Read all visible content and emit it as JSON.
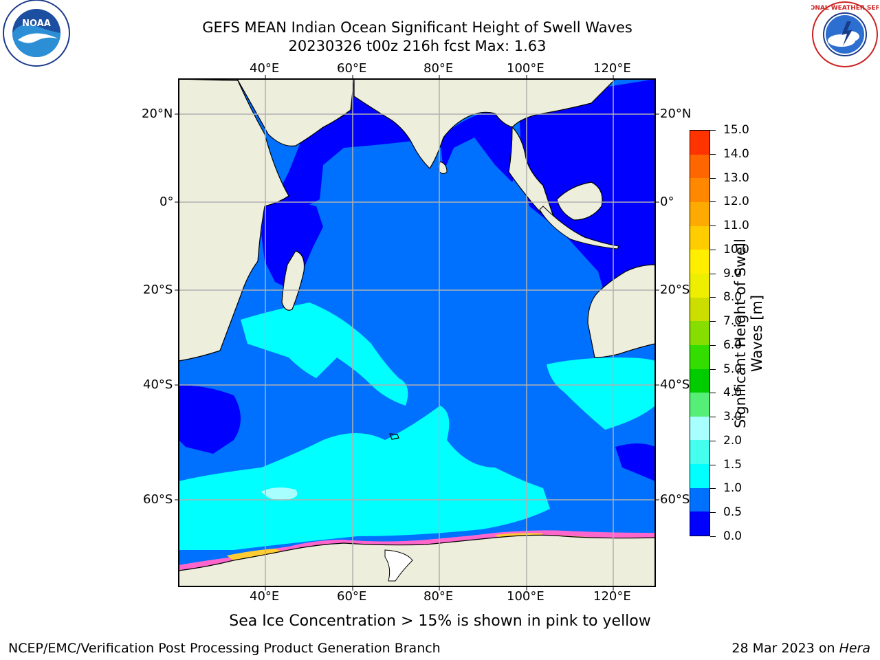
{
  "title": {
    "line1": "GEFS MEAN Indian Ocean Significant Height of Swell Waves",
    "line2": "20230326 t00z 216h fcst   Max: 1.63"
  },
  "map": {
    "lon_labels": [
      "40°E",
      "60°E",
      "80°E",
      "100°E",
      "120°E"
    ],
    "lat_labels": [
      "20°N",
      "0°",
      "20°S",
      "40°S",
      "60°S"
    ],
    "colors": {
      "ocean_dark_blue": "#0000ff",
      "ocean_mid_blue": "#0070ff",
      "ocean_cyan": "#00ffff",
      "land": "#eeeedd",
      "ice_pink": "#ff66cc",
      "ice_yellow": "#ffcc33",
      "gridline": "#b0b0b0"
    }
  },
  "colorbar": {
    "title": "Significant Height of Swell Waves [m]",
    "tick_labels": [
      "0.0",
      "0.5",
      "1.0",
      "1.5",
      "2.0",
      "3.0",
      "4.0",
      "5.0",
      "6.0",
      "7.0",
      "8.0",
      "9.0",
      "10.0",
      "11.0",
      "12.0",
      "13.0",
      "14.0",
      "15.0"
    ],
    "colors": [
      "#0000ff",
      "#0070ff",
      "#00ffff",
      "#44ffee",
      "#a8ffff",
      "#55ee77",
      "#00cc00",
      "#33dd00",
      "#88dd00",
      "#ccdd00",
      "#eeee00",
      "#ffee00",
      "#ffcc00",
      "#ffaa00",
      "#ff8800",
      "#ff6600",
      "#ff3300"
    ]
  },
  "note": "Sea Ice Concentration > 15% is shown in pink to yellow",
  "footer": {
    "left": "NCEP/EMC/Verification Post Processing Product Generation Branch",
    "right_prefix": "28 Mar 2023 on ",
    "right_italic": "Hera"
  },
  "logos": {
    "noaa_label": "NOAA",
    "nws_ring_text": "NATIONAL WEATHER SERVICE"
  }
}
